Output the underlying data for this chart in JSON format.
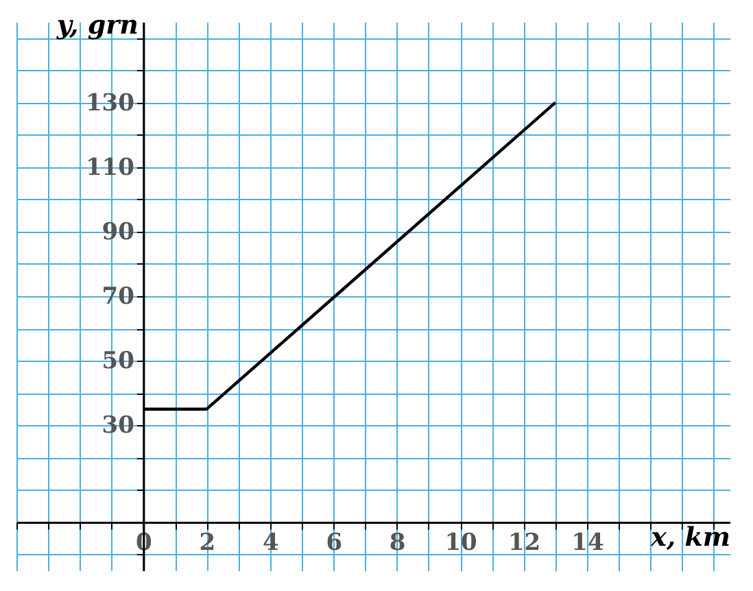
{
  "chart_data": {
    "type": "line",
    "xlabel": "x, km",
    "ylabel": "y, grn",
    "x": [
      0,
      2,
      13
    ],
    "series": [
      {
        "color": "#000000",
        "values": [
          35,
          35,
          130
        ]
      }
    ],
    "xlim": [
      -4,
      18.5
    ],
    "ylim": [
      -15,
      155
    ],
    "xticks": [
      {
        "value": -4,
        "label": null
      },
      {
        "value": -3,
        "label": null
      },
      {
        "value": -2,
        "label": null
      },
      {
        "value": -1,
        "label": null
      },
      0,
      {
        "value": 1,
        "label": null
      },
      2,
      {
        "value": 3,
        "label": null
      },
      4,
      {
        "value": 5,
        "label": null
      },
      6,
      {
        "value": 7,
        "label": null
      },
      8,
      {
        "value": 9,
        "label": null
      },
      10,
      {
        "value": 11,
        "label": null
      },
      12,
      {
        "value": 13,
        "label": null
      },
      14,
      {
        "value": 15,
        "label": null
      },
      {
        "value": 16,
        "label": null
      },
      {
        "value": 17,
        "label": null
      },
      {
        "value": 18,
        "label": null
      }
    ],
    "yticks": [
      {
        "value": -10,
        "label": null
      },
      {
        "value": 0,
        "label": null
      },
      {
        "value": 10,
        "label": null
      },
      {
        "value": 20,
        "label": null
      },
      30,
      {
        "value": 40,
        "label": null
      },
      50,
      {
        "value": 60,
        "label": null
      },
      70,
      {
        "value": 80,
        "label": null
      },
      90,
      {
        "value": 100,
        "label": null
      },
      110,
      {
        "value": 120,
        "label": null
      },
      130,
      {
        "value": 140,
        "label": null
      },
      {
        "value": 150,
        "label": null
      }
    ],
    "grid": true,
    "marker": "none",
    "line_style": "solid"
  }
}
